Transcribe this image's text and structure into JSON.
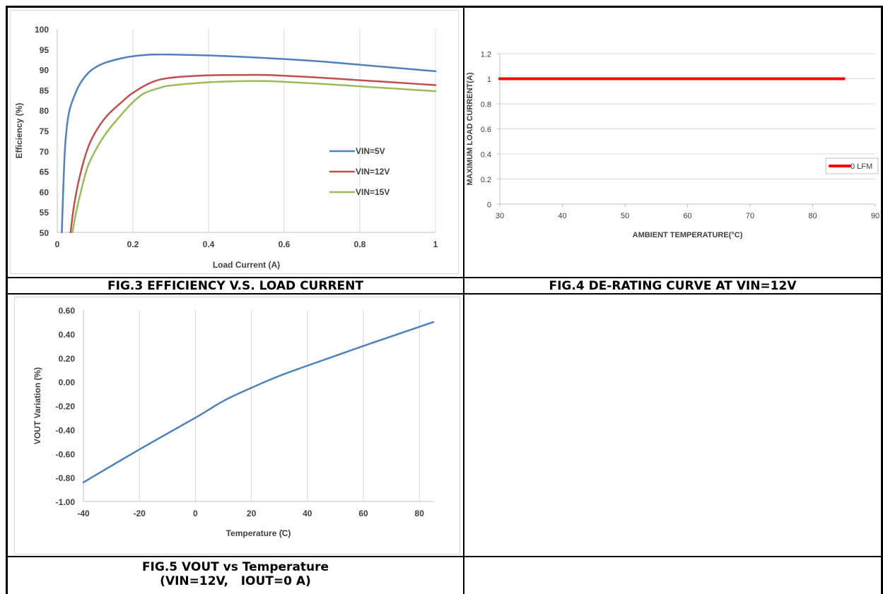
{
  "captions": {
    "fig3": "FIG.3 EFFICIENCY V.S. LOAD CURRENT",
    "fig4": "FIG.4 DE-RATING CURVE AT VIN=12V",
    "fig5_line1": "FIG.5 VOUT vs Temperature",
    "fig5_line2": "(VIN=12V,   IOUT=0 A)"
  },
  "chart_data": [
    {
      "id": "fig3",
      "type": "line",
      "xlabel": "Load Current (A)",
      "ylabel": "Efficiency (%)",
      "xlim": [
        0,
        1
      ],
      "ylim": [
        50,
        100
      ],
      "xticks": [
        0,
        0.2,
        0.4,
        0.6,
        0.8,
        1
      ],
      "xtick_labels": [
        "0",
        "0.2",
        "0.4",
        "0.6",
        "0.8",
        "1"
      ],
      "yticks": [
        50,
        55,
        60,
        65,
        70,
        75,
        80,
        85,
        90,
        95,
        100
      ],
      "ytick_labels": [
        "50",
        "55",
        "60",
        "65",
        "70",
        "75",
        "80",
        "85",
        "90",
        "95",
        "100"
      ],
      "grid": "vertical",
      "legend": "center-right",
      "series": [
        {
          "name": "VIN=5V",
          "color": "#4f81bd",
          "x": [
            0.012,
            0.02,
            0.03,
            0.045,
            0.06,
            0.08,
            0.1,
            0.13,
            0.17,
            0.2,
            0.25,
            0.3,
            0.4,
            0.5,
            0.6,
            0.7,
            0.8,
            0.9,
            1.0
          ],
          "y": [
            50,
            70,
            79,
            83.5,
            86.5,
            89,
            90.5,
            91.8,
            92.8,
            93.3,
            93.7,
            93.7,
            93.5,
            93.1,
            92.6,
            92.0,
            91.2,
            90.4,
            89.6
          ]
        },
        {
          "name": "VIN=12V",
          "color": "#c0504d",
          "x": [
            0.035,
            0.045,
            0.06,
            0.08,
            0.1,
            0.13,
            0.17,
            0.2,
            0.25,
            0.3,
            0.4,
            0.5,
            0.55,
            0.6,
            0.7,
            0.8,
            0.9,
            1.0
          ],
          "y": [
            50,
            57,
            64,
            70.5,
            74.5,
            78.5,
            82,
            84.3,
            86.9,
            88.0,
            88.6,
            88.7,
            88.7,
            88.5,
            88.0,
            87.4,
            86.8,
            86.2
          ]
        },
        {
          "name": "VIN=15V",
          "color": "#9bbb59",
          "x": [
            0.04,
            0.05,
            0.065,
            0.08,
            0.1,
            0.13,
            0.17,
            0.2,
            0.23,
            0.27,
            0.3,
            0.4,
            0.5,
            0.55,
            0.6,
            0.7,
            0.8,
            0.9,
            1.0
          ],
          "y": [
            50,
            55,
            61,
            66,
            70,
            74.5,
            79,
            82,
            84.2,
            85.5,
            86.1,
            86.9,
            87.2,
            87.2,
            87.0,
            86.5,
            85.9,
            85.3,
            84.7
          ]
        }
      ]
    },
    {
      "id": "fig4",
      "type": "line",
      "xlabel": "AMBIENT TEMPERATURE(°C)",
      "ylabel": "MAXIMUM LOAD CURRENT(A)",
      "xlim": [
        30,
        90
      ],
      "ylim": [
        0,
        1.2
      ],
      "xticks": [
        30,
        40,
        50,
        60,
        70,
        80,
        90
      ],
      "xtick_labels": [
        "30",
        "40",
        "50",
        "60",
        "70",
        "80",
        "90"
      ],
      "yticks": [
        0,
        0.2,
        0.4,
        0.6,
        0.8,
        1,
        1.2
      ],
      "ytick_labels": [
        "0",
        "0.2",
        "0.4",
        "0.6",
        "0.8",
        "1",
        "1.2"
      ],
      "grid": "horizontal",
      "legend": "right",
      "series": [
        {
          "name": "0 LFM",
          "color": "#ff0000",
          "x": [
            30,
            85
          ],
          "y": [
            1,
            1
          ]
        }
      ]
    },
    {
      "id": "fig5",
      "type": "line",
      "xlabel": "Temperature (̊C)",
      "ylabel": "VOUT Variation (%)",
      "xlim": [
        -40,
        85
      ],
      "ylim": [
        -1.0,
        0.6
      ],
      "xticks": [
        -40,
        -20,
        0,
        20,
        40,
        60,
        80
      ],
      "xtick_labels": [
        "-40",
        "-20",
        "0",
        "20",
        "40",
        "60",
        "80"
      ],
      "yticks": [
        -1.0,
        -0.8,
        -0.6,
        -0.4,
        -0.2,
        0,
        0.2,
        0.4,
        0.6
      ],
      "ytick_labels": [
        "-1.00",
        "-0.80",
        "-0.60",
        "-0.40",
        "-0.20",
        "0.00",
        "0.20",
        "0.40",
        "0.60"
      ],
      "grid": "vertical",
      "legend": "none",
      "series": [
        {
          "color": "#4f81bd",
          "x": [
            -40,
            -20,
            0,
            10,
            20,
            30,
            40,
            60,
            85
          ],
          "y": [
            -0.84,
            -0.565,
            -0.3,
            -0.16,
            -0.05,
            0.05,
            0.135,
            0.3,
            0.5
          ]
        }
      ]
    }
  ]
}
